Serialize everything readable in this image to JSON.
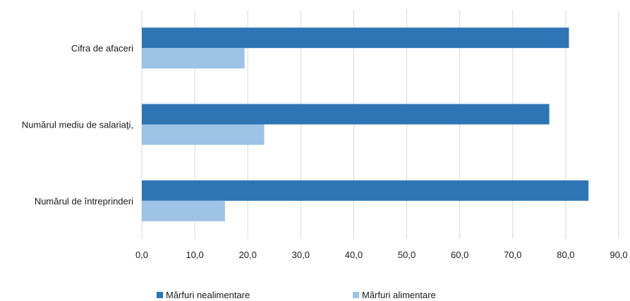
{
  "chart_data": {
    "type": "bar",
    "orientation": "horizontal",
    "categories": [
      "Cifra de afaceri",
      "Numărul mediu de salariaţi,",
      "Numărul de întreprinderi"
    ],
    "series": [
      {
        "name": "Mărfuri nealimentare",
        "values": [
          80.6,
          76.9,
          84.3
        ],
        "color": "#2e75b6"
      },
      {
        "name": "Mărfuri alimentare",
        "values": [
          19.4,
          23.1,
          15.7
        ],
        "color": "#9dc3e6"
      }
    ],
    "x_ticks": [
      "0,0",
      "10,0",
      "20,0",
      "30,0",
      "40,0",
      "50,0",
      "60,0",
      "70,0",
      "80,0",
      "90,0"
    ],
    "xlim": [
      0,
      90
    ],
    "grid": true,
    "legend_position": "bottom",
    "title": "",
    "xlabel": "",
    "ylabel": ""
  }
}
